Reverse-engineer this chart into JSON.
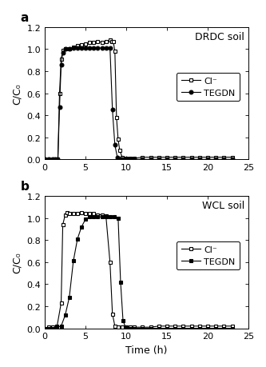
{
  "panel_a": {
    "title": "DRDC soil",
    "cl_x": [
      0,
      0.5,
      1.0,
      1.3,
      1.6,
      1.8,
      2.0,
      2.2,
      2.5,
      3.0,
      3.5,
      4.0,
      4.5,
      5.0,
      5.5,
      6.0,
      6.5,
      7.0,
      7.5,
      8.0,
      8.2,
      8.4,
      8.6,
      8.8,
      9.0,
      9.2,
      9.5,
      10.0,
      10.5,
      11.0,
      12.0,
      13.0,
      14.0,
      15.0,
      16.0,
      17.0,
      18.0,
      19.0,
      20.0,
      21.0,
      22.0,
      23.0
    ],
    "cl_y": [
      0.0,
      0.0,
      0.0,
      0.0,
      0.005,
      0.6,
      0.91,
      0.99,
      1.0,
      1.0,
      1.02,
      1.03,
      1.04,
      1.05,
      1.06,
      1.06,
      1.07,
      1.06,
      1.07,
      1.08,
      1.07,
      1.07,
      0.98,
      0.38,
      0.18,
      0.08,
      0.02,
      0.01,
      0.01,
      0.01,
      0.02,
      0.02,
      0.02,
      0.02,
      0.02,
      0.02,
      0.02,
      0.02,
      0.02,
      0.02,
      0.02,
      0.02
    ],
    "tegdn_x": [
      0,
      0.5,
      1.0,
      1.3,
      1.6,
      1.8,
      2.0,
      2.2,
      2.5,
      3.0,
      3.5,
      4.0,
      4.5,
      5.0,
      5.5,
      6.0,
      6.5,
      7.0,
      7.5,
      8.0,
      8.3,
      8.6,
      8.9,
      9.0,
      9.2,
      9.5,
      10.0,
      10.5,
      11.0,
      12.0,
      13.0,
      14.0,
      15.0,
      16.0,
      17.0,
      18.0,
      19.0,
      20.0,
      21.0,
      22.0,
      23.0
    ],
    "tegdn_y": [
      0.0,
      0.0,
      0.0,
      0.0,
      0.005,
      0.47,
      0.86,
      0.97,
      1.0,
      1.0,
      1.01,
      1.01,
      1.01,
      1.01,
      1.01,
      1.01,
      1.01,
      1.01,
      1.01,
      1.01,
      0.45,
      0.13,
      0.02,
      0.005,
      0.0,
      0.0,
      0.0,
      0.0,
      0.0,
      0.0,
      0.0,
      0.0,
      0.0,
      0.0,
      0.0,
      0.0,
      0.0,
      0.0,
      0.0,
      0.0,
      0.0
    ],
    "marker_tegdn": "o",
    "tegdn_filled": true
  },
  "panel_b": {
    "title": "WCL soil",
    "cl_x": [
      0,
      0.5,
      1.0,
      1.5,
      2.0,
      2.2,
      2.5,
      2.7,
      3.0,
      3.5,
      4.0,
      4.5,
      5.0,
      5.5,
      6.0,
      6.5,
      7.0,
      7.5,
      8.0,
      8.3,
      8.6,
      9.0,
      9.5,
      10.0,
      10.5,
      11.0,
      12.0,
      13.0,
      14.0,
      15.0,
      16.0,
      17.0,
      18.0,
      19.0,
      20.0,
      21.0,
      22.0,
      23.0
    ],
    "cl_y": [
      0.0,
      0.01,
      0.01,
      0.02,
      0.23,
      0.94,
      1.03,
      1.05,
      1.04,
      1.04,
      1.04,
      1.05,
      1.04,
      1.04,
      1.04,
      1.03,
      1.03,
      1.02,
      0.6,
      0.13,
      0.02,
      0.01,
      0.01,
      0.01,
      0.01,
      0.01,
      0.01,
      0.01,
      0.02,
      0.02,
      0.02,
      0.02,
      0.02,
      0.02,
      0.02,
      0.02,
      0.02,
      0.02
    ],
    "tegdn_x": [
      0,
      0.5,
      1.0,
      1.5,
      2.0,
      2.5,
      3.0,
      3.5,
      4.0,
      4.5,
      5.0,
      5.5,
      6.0,
      6.5,
      7.0,
      7.5,
      8.0,
      8.5,
      9.0,
      9.3,
      9.6,
      9.9,
      10.2,
      10.5,
      11.0,
      12.0,
      13.0,
      14.0,
      15.0,
      16.0,
      17.0,
      18.0,
      19.0,
      20.0,
      21.0,
      22.0,
      23.0
    ],
    "tegdn_y": [
      0.0,
      0.0,
      0.0,
      0.01,
      0.02,
      0.12,
      0.28,
      0.61,
      0.81,
      0.92,
      0.99,
      1.01,
      1.01,
      1.01,
      1.01,
      1.01,
      1.01,
      1.01,
      1.0,
      0.42,
      0.07,
      0.01,
      0.0,
      0.0,
      0.0,
      0.0,
      0.0,
      0.0,
      0.0,
      0.0,
      0.0,
      0.0,
      0.0,
      0.0,
      0.0,
      0.0,
      0.0
    ],
    "marker_tegdn": "s",
    "tegdn_filled": true
  },
  "ylabel": "C/C₀",
  "xlabel": "Time (h)",
  "legend_cl": "Cl⁻",
  "legend_tegdn": "TEGDN",
  "xlim": [
    0,
    25
  ],
  "ylim": [
    0,
    1.2
  ],
  "xticks": [
    0,
    5,
    10,
    15,
    20,
    25
  ],
  "yticks": [
    0.0,
    0.2,
    0.4,
    0.6,
    0.8,
    1.0,
    1.2
  ],
  "line_color": "#000000",
  "bg_color": "#ffffff",
  "marker_cl": "s",
  "marker_size_cl": 3.5,
  "marker_size_tegdn": 3.5,
  "linewidth": 0.8,
  "fontsize_label": 9,
  "fontsize_tick": 8,
  "fontsize_title": 9,
  "fontsize_legend": 8,
  "fontsize_panel_label": 11
}
